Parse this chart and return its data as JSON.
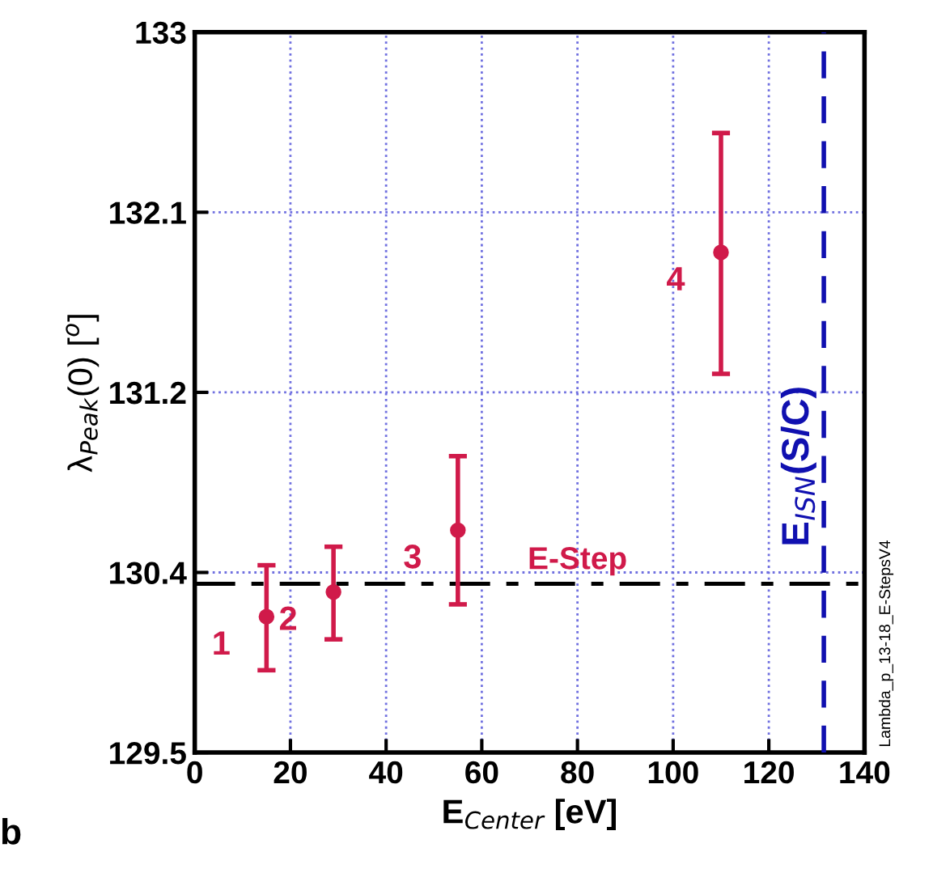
{
  "chart_data": {
    "type": "scatter",
    "xlabel": "E$_{Center}$ [eV]",
    "ylabel": "λ$_{Peak}$(0) [$^{o}$]",
    "x": [
      15,
      29,
      55,
      110
    ],
    "series": [
      {
        "color": "#d01a4a",
        "values": [
          130.16,
          130.28,
          130.58,
          131.93
        ],
        "errors": [
          [
            129.9,
            130.41
          ],
          [
            130.05,
            130.5
          ],
          [
            130.22,
            130.94
          ],
          [
            131.34,
            132.51
          ]
        ]
      }
    ],
    "marker": "circle",
    "xlim": [
      0,
      140
    ],
    "xticks": [
      0,
      20,
      40,
      60,
      80,
      100,
      120,
      140
    ],
    "ylim": [
      129.5,
      133
    ],
    "yticks": [
      129.5,
      {
        "value": 130.375,
        "label": "130.4"
      },
      {
        "value": 131.25,
        "label": "131.2"
      },
      {
        "value": 132.125,
        "label": "132.1"
      },
      133
    ],
    "grid": true,
    "ref_lines": [
      {
        "axis": "y",
        "value": 130.32,
        "label": "E-Step",
        "color": "#000000",
        "line_style": "dashdot"
      },
      {
        "axis": "x",
        "value": 131.5,
        "label": "E$_{ISN}$(S/C)",
        "color": "#1010b0",
        "line_style": "dashed"
      }
    ],
    "annotations": [
      {
        "text": "1",
        "x": 15,
        "y": 130.16
      },
      {
        "text": "2",
        "x": 29,
        "y": 130.28
      },
      {
        "text": "3",
        "x": 55,
        "y": 130.58
      },
      {
        "text": "4",
        "x": 110,
        "y": 131.93
      },
      "Lambda_p_13-18_E-StepsV4",
      "b"
    ]
  }
}
